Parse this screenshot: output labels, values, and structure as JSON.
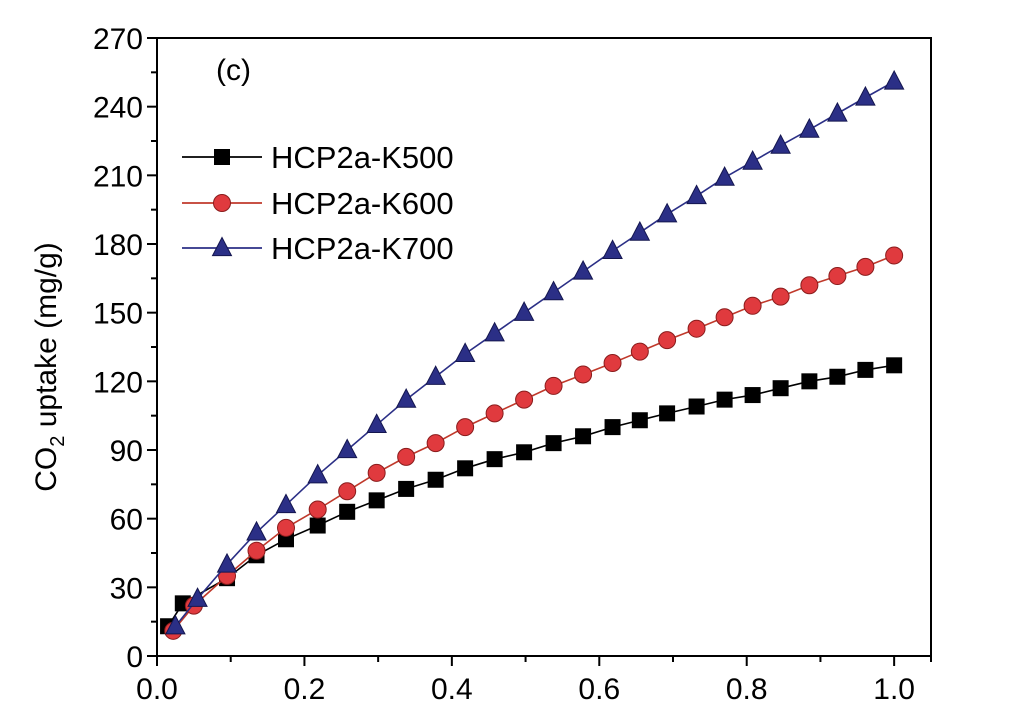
{
  "chart_data": {
    "type": "scatter",
    "panel_label": "(c)",
    "ylabel_main": "CO",
    "ylabel_sub": "2",
    "ylabel_rest": " uptake (mg/g)",
    "xlabel": "",
    "xlim": [
      0.0,
      1.05
    ],
    "ylim": [
      0,
      270
    ],
    "xticks": [
      0.0,
      0.2,
      0.4,
      0.6,
      0.8,
      1.0
    ],
    "yticks": [
      0,
      30,
      60,
      90,
      120,
      150,
      180,
      210,
      240,
      270
    ],
    "xtick_labels": [
      "0.0",
      "0.2",
      "0.4",
      "0.6",
      "0.8",
      "1.0"
    ],
    "ytick_labels": [
      "0",
      "30",
      "60",
      "90",
      "120",
      "150",
      "180",
      "210",
      "240",
      "270"
    ],
    "grid": false,
    "legend_position": "upper-left",
    "series": [
      {
        "name": "HCP2a-K500",
        "marker": "square",
        "color": "#000000",
        "line_color": "#000000",
        "x": [
          0.015,
          0.035,
          0.095,
          0.135,
          0.175,
          0.218,
          0.258,
          0.298,
          0.338,
          0.378,
          0.418,
          0.458,
          0.498,
          0.538,
          0.578,
          0.618,
          0.655,
          0.692,
          0.732,
          0.77,
          0.808,
          0.846,
          0.885,
          0.923,
          0.961,
          1.0
        ],
        "y": [
          13,
          23,
          34,
          44,
          51,
          57,
          63,
          68,
          73,
          77,
          82,
          86,
          89,
          93,
          96,
          100,
          103,
          106,
          109,
          112,
          114,
          117,
          120,
          122,
          125,
          127
        ]
      },
      {
        "name": "HCP2a-K600",
        "marker": "circle",
        "color": "#e03a3e",
        "line_color": "#c0392b",
        "x": [
          0.022,
          0.05,
          0.095,
          0.135,
          0.175,
          0.218,
          0.258,
          0.298,
          0.338,
          0.378,
          0.418,
          0.458,
          0.498,
          0.538,
          0.578,
          0.618,
          0.655,
          0.692,
          0.732,
          0.77,
          0.808,
          0.846,
          0.885,
          0.923,
          0.961,
          1.0
        ],
        "y": [
          11,
          22,
          35,
          46,
          56,
          64,
          72,
          80,
          87,
          93,
          100,
          106,
          112,
          118,
          123,
          128,
          133,
          138,
          143,
          148,
          153,
          157,
          162,
          166,
          170,
          175
        ]
      },
      {
        "name": "HCP2a-K700",
        "marker": "triangle",
        "color": "#2b2f86",
        "line_color": "#2b2f86",
        "x": [
          0.025,
          0.055,
          0.095,
          0.135,
          0.175,
          0.218,
          0.258,
          0.298,
          0.338,
          0.378,
          0.418,
          0.458,
          0.498,
          0.538,
          0.578,
          0.618,
          0.655,
          0.692,
          0.732,
          0.77,
          0.808,
          0.846,
          0.885,
          0.923,
          0.961,
          1.0
        ],
        "y": [
          13,
          25,
          40,
          54,
          66,
          79,
          90,
          101,
          112,
          122,
          132,
          141,
          150,
          159,
          168,
          177,
          185,
          193,
          201,
          209,
          216,
          223,
          230,
          237,
          244,
          251
        ]
      }
    ]
  }
}
